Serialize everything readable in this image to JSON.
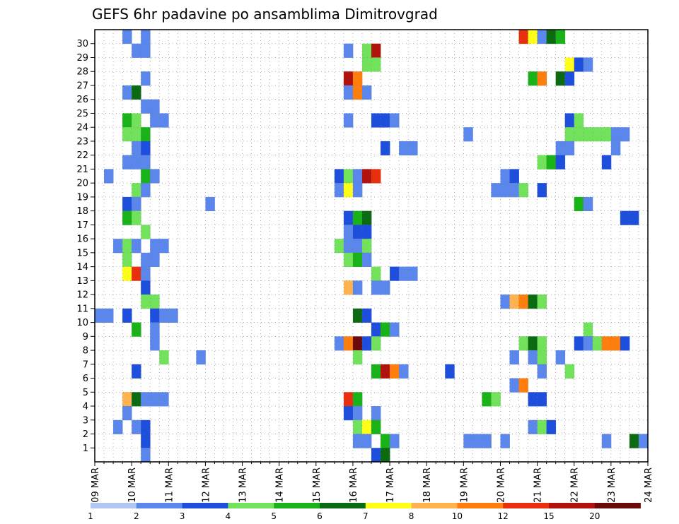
{
  "chart_data": {
    "type": "heatmap",
    "title": "GEFS 6hr padavine po ansamblima Dimitrovgrad",
    "xlabel": "",
    "ylabel": "",
    "x_ticks": [
      "09 MAR",
      "10 MAR",
      "11 MAR",
      "12 MAR",
      "13 MAR",
      "14 MAR",
      "15 MAR",
      "16 MAR",
      "17 MAR",
      "18 MAR",
      "19 MAR",
      "20 MAR",
      "21 MAR",
      "22 MAR",
      "23 MAR",
      "24 MAR"
    ],
    "y_ticks": [
      "1",
      "2",
      "3",
      "4",
      "5",
      "6",
      "7",
      "8",
      "9",
      "10",
      "11",
      "12",
      "13",
      "14",
      "15",
      "16",
      "17",
      "18",
      "19",
      "20",
      "21",
      "22",
      "23",
      "24",
      "25",
      "26",
      "27",
      "28",
      "29",
      "30"
    ],
    "xlim": [
      "09 MAR",
      "24 MAR"
    ],
    "ylim": [
      0,
      30
    ],
    "time_step_hours": 6,
    "grid": true,
    "legend": {
      "placement": "bottom",
      "labels": [
        "1",
        "2",
        "3",
        "4",
        "5",
        "6",
        "7",
        "8",
        "10",
        "12",
        "15",
        "20"
      ],
      "colors": [
        "#b3c6f2",
        "#5b87ec",
        "#1e4fdc",
        "#72e25c",
        "#19b319",
        "#0c6b12",
        "#ffff1a",
        "#ffb24d",
        "#ff7f0e",
        "#e8300e",
        "#b0120e",
        "#6a0a0a"
      ]
    },
    "cells": [
      {
        "member": 30,
        "step": 3,
        "cls": 1
      },
      {
        "member": 30,
        "step": 5,
        "cls": 1
      },
      {
        "member": 30,
        "step": 46,
        "cls": 9
      },
      {
        "member": 30,
        "step": 47,
        "cls": 6
      },
      {
        "member": 30,
        "step": 48,
        "cls": 1
      },
      {
        "member": 30,
        "step": 49,
        "cls": 5
      },
      {
        "member": 30,
        "step": 50,
        "cls": 4
      },
      {
        "member": 29,
        "step": 4,
        "cls": 1
      },
      {
        "member": 29,
        "step": 5,
        "cls": 1
      },
      {
        "member": 29,
        "step": 27,
        "cls": 1
      },
      {
        "member": 29,
        "step": 29,
        "cls": 3
      },
      {
        "member": 29,
        "step": 30,
        "cls": 10
      },
      {
        "member": 28,
        "step": 29,
        "cls": 3
      },
      {
        "member": 28,
        "step": 30,
        "cls": 3
      },
      {
        "member": 28,
        "step": 51,
        "cls": 6
      },
      {
        "member": 28,
        "step": 52,
        "cls": 2
      },
      {
        "member": 28,
        "step": 53,
        "cls": 1
      },
      {
        "member": 27,
        "step": 5,
        "cls": 1
      },
      {
        "member": 27,
        "step": 27,
        "cls": 10
      },
      {
        "member": 27,
        "step": 28,
        "cls": 8
      },
      {
        "member": 27,
        "step": 47,
        "cls": 4
      },
      {
        "member": 27,
        "step": 48,
        "cls": 8
      },
      {
        "member": 27,
        "step": 50,
        "cls": 5
      },
      {
        "member": 27,
        "step": 51,
        "cls": 2
      },
      {
        "member": 26,
        "step": 3,
        "cls": 1
      },
      {
        "member": 26,
        "step": 4,
        "cls": 5
      },
      {
        "member": 26,
        "step": 27,
        "cls": 1
      },
      {
        "member": 26,
        "step": 28,
        "cls": 8
      },
      {
        "member": 26,
        "step": 29,
        "cls": 1
      },
      {
        "member": 25,
        "step": 5,
        "cls": 1
      },
      {
        "member": 25,
        "step": 6,
        "cls": 1
      },
      {
        "member": 24,
        "step": 3,
        "cls": 4
      },
      {
        "member": 24,
        "step": 4,
        "cls": 3
      },
      {
        "member": 24,
        "step": 6,
        "cls": 1
      },
      {
        "member": 24,
        "step": 7,
        "cls": 1
      },
      {
        "member": 24,
        "step": 27,
        "cls": 1
      },
      {
        "member": 24,
        "step": 30,
        "cls": 2
      },
      {
        "member": 24,
        "step": 31,
        "cls": 2
      },
      {
        "member": 24,
        "step": 32,
        "cls": 1
      },
      {
        "member": 24,
        "step": 51,
        "cls": 2
      },
      {
        "member": 24,
        "step": 52,
        "cls": 3
      },
      {
        "member": 23,
        "step": 3,
        "cls": 3
      },
      {
        "member": 23,
        "step": 4,
        "cls": 3
      },
      {
        "member": 23,
        "step": 5,
        "cls": 4
      },
      {
        "member": 23,
        "step": 40,
        "cls": 1
      },
      {
        "member": 23,
        "step": 51,
        "cls": 3
      },
      {
        "member": 23,
        "step": 52,
        "cls": 3
      },
      {
        "member": 23,
        "step": 53,
        "cls": 3
      },
      {
        "member": 23,
        "step": 54,
        "cls": 3
      },
      {
        "member": 23,
        "step": 55,
        "cls": 3
      },
      {
        "member": 23,
        "step": 56,
        "cls": 1
      },
      {
        "member": 23,
        "step": 57,
        "cls": 1
      },
      {
        "member": 22,
        "step": 4,
        "cls": 1
      },
      {
        "member": 22,
        "step": 5,
        "cls": 2
      },
      {
        "member": 22,
        "step": 31,
        "cls": 2
      },
      {
        "member": 22,
        "step": 33,
        "cls": 1
      },
      {
        "member": 22,
        "step": 34,
        "cls": 1
      },
      {
        "member": 22,
        "step": 50,
        "cls": 1
      },
      {
        "member": 22,
        "step": 51,
        "cls": 1
      },
      {
        "member": 22,
        "step": 56,
        "cls": 1
      },
      {
        "member": 21,
        "step": 3,
        "cls": 1
      },
      {
        "member": 21,
        "step": 4,
        "cls": 1
      },
      {
        "member": 21,
        "step": 5,
        "cls": 1
      },
      {
        "member": 21,
        "step": 48,
        "cls": 3
      },
      {
        "member": 21,
        "step": 49,
        "cls": 4
      },
      {
        "member": 21,
        "step": 50,
        "cls": 2
      },
      {
        "member": 21,
        "step": 55,
        "cls": 2
      },
      {
        "member": 20,
        "step": 1,
        "cls": 1
      },
      {
        "member": 20,
        "step": 5,
        "cls": 4
      },
      {
        "member": 20,
        "step": 6,
        "cls": 1
      },
      {
        "member": 20,
        "step": 26,
        "cls": 2
      },
      {
        "member": 20,
        "step": 27,
        "cls": 3
      },
      {
        "member": 20,
        "step": 28,
        "cls": 1
      },
      {
        "member": 20,
        "step": 29,
        "cls": 10
      },
      {
        "member": 20,
        "step": 30,
        "cls": 9
      },
      {
        "member": 20,
        "step": 44,
        "cls": 1
      },
      {
        "member": 20,
        "step": 45,
        "cls": 2
      },
      {
        "member": 19,
        "step": 4,
        "cls": 3
      },
      {
        "member": 19,
        "step": 5,
        "cls": 1
      },
      {
        "member": 19,
        "step": 26,
        "cls": 1
      },
      {
        "member": 19,
        "step": 27,
        "cls": 6
      },
      {
        "member": 19,
        "step": 28,
        "cls": 1
      },
      {
        "member": 19,
        "step": 43,
        "cls": 1
      },
      {
        "member": 19,
        "step": 44,
        "cls": 1
      },
      {
        "member": 19,
        "step": 45,
        "cls": 1
      },
      {
        "member": 19,
        "step": 46,
        "cls": 3
      },
      {
        "member": 19,
        "step": 48,
        "cls": 2
      },
      {
        "member": 18,
        "step": 3,
        "cls": 2
      },
      {
        "member": 18,
        "step": 4,
        "cls": 1
      },
      {
        "member": 18,
        "step": 12,
        "cls": 1
      },
      {
        "member": 18,
        "step": 52,
        "cls": 4
      },
      {
        "member": 18,
        "step": 53,
        "cls": 1
      },
      {
        "member": 17,
        "step": 3,
        "cls": 4
      },
      {
        "member": 17,
        "step": 4,
        "cls": 3
      },
      {
        "member": 17,
        "step": 27,
        "cls": 2
      },
      {
        "member": 17,
        "step": 28,
        "cls": 4
      },
      {
        "member": 17,
        "step": 29,
        "cls": 5
      },
      {
        "member": 17,
        "step": 57,
        "cls": 2
      },
      {
        "member": 17,
        "step": 58,
        "cls": 2
      },
      {
        "member": 16,
        "step": 5,
        "cls": 3
      },
      {
        "member": 16,
        "step": 27,
        "cls": 1
      },
      {
        "member": 16,
        "step": 28,
        "cls": 2
      },
      {
        "member": 16,
        "step": 29,
        "cls": 2
      },
      {
        "member": 15,
        "step": 2,
        "cls": 1
      },
      {
        "member": 15,
        "step": 3,
        "cls": 3
      },
      {
        "member": 15,
        "step": 4,
        "cls": 1
      },
      {
        "member": 15,
        "step": 6,
        "cls": 1
      },
      {
        "member": 15,
        "step": 7,
        "cls": 1
      },
      {
        "member": 15,
        "step": 26,
        "cls": 3
      },
      {
        "member": 15,
        "step": 27,
        "cls": 1
      },
      {
        "member": 15,
        "step": 28,
        "cls": 1
      },
      {
        "member": 15,
        "step": 29,
        "cls": 3
      },
      {
        "member": 14,
        "step": 3,
        "cls": 3
      },
      {
        "member": 14,
        "step": 5,
        "cls": 1
      },
      {
        "member": 14,
        "step": 6,
        "cls": 1
      },
      {
        "member": 14,
        "step": 27,
        "cls": 3
      },
      {
        "member": 14,
        "step": 28,
        "cls": 4
      },
      {
        "member": 14,
        "step": 29,
        "cls": 1
      },
      {
        "member": 13,
        "step": 3,
        "cls": 6
      },
      {
        "member": 13,
        "step": 4,
        "cls": 9
      },
      {
        "member": 13,
        "step": 5,
        "cls": 1
      },
      {
        "member": 13,
        "step": 30,
        "cls": 3
      },
      {
        "member": 13,
        "step": 32,
        "cls": 2
      },
      {
        "member": 13,
        "step": 33,
        "cls": 1
      },
      {
        "member": 13,
        "step": 34,
        "cls": 1
      },
      {
        "member": 12,
        "step": 5,
        "cls": 2
      },
      {
        "member": 12,
        "step": 27,
        "cls": 7
      },
      {
        "member": 12,
        "step": 28,
        "cls": 1
      },
      {
        "member": 12,
        "step": 30,
        "cls": 1
      },
      {
        "member": 12,
        "step": 31,
        "cls": 1
      },
      {
        "member": 11,
        "step": 5,
        "cls": 3
      },
      {
        "member": 11,
        "step": 6,
        "cls": 3
      },
      {
        "member": 11,
        "step": 44,
        "cls": 1
      },
      {
        "member": 11,
        "step": 45,
        "cls": 7
      },
      {
        "member": 11,
        "step": 46,
        "cls": 8
      },
      {
        "member": 11,
        "step": 47,
        "cls": 5
      },
      {
        "member": 11,
        "step": 48,
        "cls": 3
      },
      {
        "member": 10,
        "step": 0,
        "cls": 1
      },
      {
        "member": 10,
        "step": 1,
        "cls": 1
      },
      {
        "member": 10,
        "step": 3,
        "cls": 2
      },
      {
        "member": 10,
        "step": 6,
        "cls": 2
      },
      {
        "member": 10,
        "step": 7,
        "cls": 1
      },
      {
        "member": 10,
        "step": 8,
        "cls": 1
      },
      {
        "member": 10,
        "step": 28,
        "cls": 5
      },
      {
        "member": 10,
        "step": 29,
        "cls": 2
      },
      {
        "member": 9,
        "step": 4,
        "cls": 4
      },
      {
        "member": 9,
        "step": 6,
        "cls": 1
      },
      {
        "member": 9,
        "step": 30,
        "cls": 2
      },
      {
        "member": 9,
        "step": 31,
        "cls": 4
      },
      {
        "member": 9,
        "step": 32,
        "cls": 1
      },
      {
        "member": 9,
        "step": 53,
        "cls": 3
      },
      {
        "member": 8,
        "step": 6,
        "cls": 1
      },
      {
        "member": 8,
        "step": 26,
        "cls": 1
      },
      {
        "member": 8,
        "step": 27,
        "cls": 8
      },
      {
        "member": 8,
        "step": 28,
        "cls": 11
      },
      {
        "member": 8,
        "step": 29,
        "cls": 2
      },
      {
        "member": 8,
        "step": 30,
        "cls": 3
      },
      {
        "member": 8,
        "step": 46,
        "cls": 3
      },
      {
        "member": 8,
        "step": 47,
        "cls": 5
      },
      {
        "member": 8,
        "step": 48,
        "cls": 3
      },
      {
        "member": 8,
        "step": 52,
        "cls": 2
      },
      {
        "member": 8,
        "step": 53,
        "cls": 1
      },
      {
        "member": 8,
        "step": 54,
        "cls": 3
      },
      {
        "member": 8,
        "step": 55,
        "cls": 8
      },
      {
        "member": 8,
        "step": 56,
        "cls": 8
      },
      {
        "member": 8,
        "step": 57,
        "cls": 2
      },
      {
        "member": 7,
        "step": 7,
        "cls": 3
      },
      {
        "member": 7,
        "step": 11,
        "cls": 1
      },
      {
        "member": 7,
        "step": 28,
        "cls": 3
      },
      {
        "member": 7,
        "step": 45,
        "cls": 1
      },
      {
        "member": 7,
        "step": 47,
        "cls": 1
      },
      {
        "member": 7,
        "step": 48,
        "cls": 3
      },
      {
        "member": 7,
        "step": 50,
        "cls": 1
      },
      {
        "member": 6,
        "step": 4,
        "cls": 2
      },
      {
        "member": 6,
        "step": 30,
        "cls": 4
      },
      {
        "member": 6,
        "step": 31,
        "cls": 10
      },
      {
        "member": 6,
        "step": 32,
        "cls": 8
      },
      {
        "member": 6,
        "step": 33,
        "cls": 1
      },
      {
        "member": 6,
        "step": 38,
        "cls": 2
      },
      {
        "member": 6,
        "step": 48,
        "cls": 1
      },
      {
        "member": 6,
        "step": 51,
        "cls": 3
      },
      {
        "member": 5,
        "step": 45,
        "cls": 1
      },
      {
        "member": 5,
        "step": 46,
        "cls": 8
      },
      {
        "member": 4,
        "step": 3,
        "cls": 7
      },
      {
        "member": 4,
        "step": 4,
        "cls": 5
      },
      {
        "member": 4,
        "step": 5,
        "cls": 1
      },
      {
        "member": 4,
        "step": 6,
        "cls": 1
      },
      {
        "member": 4,
        "step": 7,
        "cls": 1
      },
      {
        "member": 4,
        "step": 27,
        "cls": 9
      },
      {
        "member": 4,
        "step": 28,
        "cls": 4
      },
      {
        "member": 4,
        "step": 42,
        "cls": 4
      },
      {
        "member": 4,
        "step": 43,
        "cls": 3
      },
      {
        "member": 4,
        "step": 47,
        "cls": 2
      },
      {
        "member": 4,
        "step": 48,
        "cls": 2
      },
      {
        "member": 3,
        "step": 3,
        "cls": 1
      },
      {
        "member": 3,
        "step": 27,
        "cls": 2
      },
      {
        "member": 3,
        "step": 28,
        "cls": 1
      },
      {
        "member": 3,
        "step": 30,
        "cls": 1
      },
      {
        "member": 2,
        "step": 2,
        "cls": 1
      },
      {
        "member": 2,
        "step": 4,
        "cls": 1
      },
      {
        "member": 2,
        "step": 5,
        "cls": 2
      },
      {
        "member": 2,
        "step": 28,
        "cls": 3
      },
      {
        "member": 2,
        "step": 29,
        "cls": 6
      },
      {
        "member": 2,
        "step": 30,
        "cls": 4
      },
      {
        "member": 2,
        "step": 47,
        "cls": 1
      },
      {
        "member": 2,
        "step": 48,
        "cls": 3
      },
      {
        "member": 2,
        "step": 49,
        "cls": 2
      },
      {
        "member": 1,
        "step": 5,
        "cls": 2
      },
      {
        "member": 1,
        "step": 28,
        "cls": 1
      },
      {
        "member": 1,
        "step": 29,
        "cls": 1
      },
      {
        "member": 1,
        "step": 31,
        "cls": 4
      },
      {
        "member": 1,
        "step": 32,
        "cls": 1
      },
      {
        "member": 1,
        "step": 40,
        "cls": 1
      },
      {
        "member": 1,
        "step": 41,
        "cls": 1
      },
      {
        "member": 1,
        "step": 42,
        "cls": 1
      },
      {
        "member": 1,
        "step": 44,
        "cls": 1
      },
      {
        "member": 1,
        "step": 55,
        "cls": 1
      },
      {
        "member": 1,
        "step": 58,
        "cls": 5
      },
      {
        "member": 1,
        "step": 59,
        "cls": 1
      },
      {
        "member": 0,
        "step": 5,
        "cls": 1
      },
      {
        "member": 0,
        "step": 30,
        "cls": 2
      },
      {
        "member": 0,
        "step": 31,
        "cls": 5
      }
    ]
  }
}
